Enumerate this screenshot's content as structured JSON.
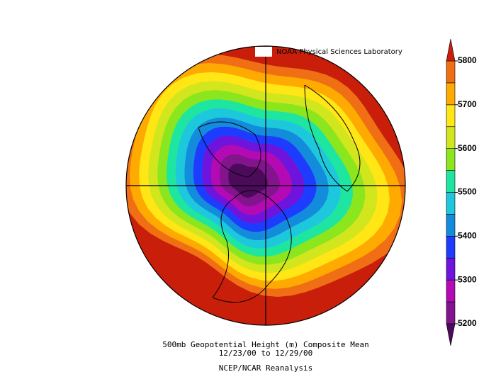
{
  "credit": "NOAA Physical Sciences Laboratory",
  "title": "500mb Geopotential Height (m) Composite Mean",
  "subtitle": "12/23/00   to 12/29/00",
  "source": "NCEP/NCAR Reanalysis",
  "colorbar": {
    "lim": [
      5200,
      5800
    ],
    "ticks": [
      5200,
      5300,
      5400,
      5500,
      5600,
      5700,
      5800
    ],
    "colors": [
      "#82148c",
      "#b40ab4",
      "#6e14dc",
      "#1e3cff",
      "#148cdc",
      "#1ec8dc",
      "#1ee6a0",
      "#8ce61e",
      "#d2e61e",
      "#ffe614",
      "#ffaa00",
      "#f06e14"
    ],
    "under_color": "#4b0a5a",
    "over_color": "#c81e0a"
  }
}
